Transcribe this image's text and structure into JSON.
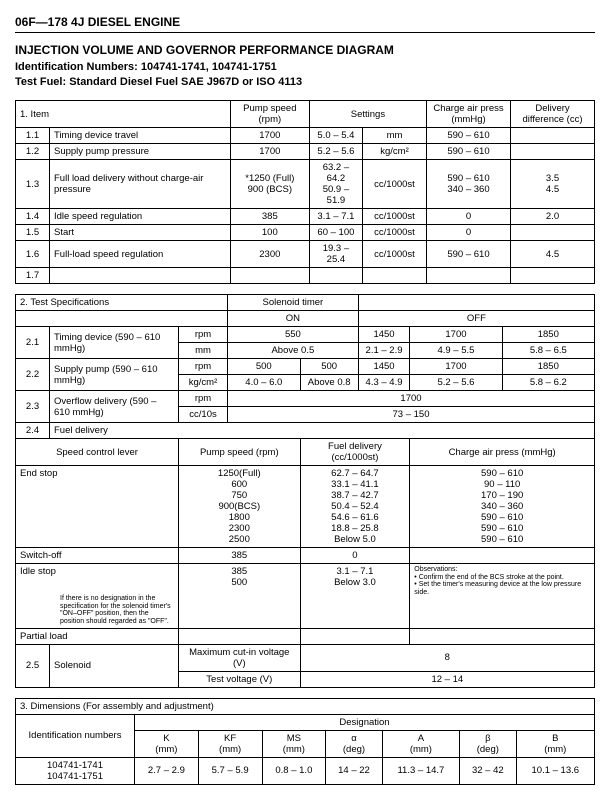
{
  "header": "06F—178  4J DIESEL ENGINE",
  "title": "INJECTION VOLUME AND GOVERNOR PERFORMANCE DIAGRAM",
  "id_line": "Identification Numbers: 104741-1741, 104741-1751",
  "fuel_line": "Test Fuel: Standard Diesel Fuel SAE J967D or ISO 4113",
  "t1": {
    "h1": "1.     Item",
    "h2": "Pump speed (rpm)",
    "h3": "Settings",
    "h4": "Charge air press (mmHg)",
    "h5": "Delivery difference (cc)",
    "rows": [
      [
        "1.1",
        "Timing device travel",
        "1700",
        "5.0 – 5.4",
        "mm",
        "590 – 610",
        ""
      ],
      [
        "1.2",
        "Supply pump pressure",
        "1700",
        "5.2 – 5.6",
        "kg/cm²",
        "590 – 610",
        ""
      ],
      [
        "1.3",
        "Full load delivery without charge-air pressure",
        "*1250 (Full)\n900 (BCS)",
        "63.2 – 64.2\n50.9 – 51.9",
        "cc/1000st",
        "590 – 610\n340 – 360",
        "3.5\n4.5"
      ],
      [
        "1.4",
        "Idle speed regulation",
        "385",
        "3.1 – 7.1",
        "cc/1000st",
        "0",
        "2.0"
      ],
      [
        "1.5",
        "Start",
        "100",
        "60 – 100",
        "cc/1000st",
        "0",
        ""
      ],
      [
        "1.6",
        "Full-load speed regulation",
        "2300",
        "19.3 – 25.4",
        "cc/1000st",
        "590 – 610",
        "4.5"
      ],
      [
        "1.7",
        "",
        "",
        "",
        "",
        "",
        ""
      ]
    ]
  },
  "t2": {
    "h1": "2.     Test Specifications",
    "h2": "Solenoid timer",
    "on": "ON",
    "off": "OFF",
    "r21": {
      "n": "2.1",
      "name": "Timing device (590 – 610 mmHg)",
      "u1": "rpm",
      "u2": "mm",
      "on1": "550",
      "on2": "Above 0.5",
      "off_a1": "1450",
      "off_a2": "2.1 – 2.9",
      "off_b1": "1700",
      "off_b2": "4.9 – 5.5",
      "off_c1": "1850",
      "off_c2": "5.8 – 6.5"
    },
    "r22": {
      "n": "2.2",
      "name": "Supply pump (590 – 610 mmHg)",
      "u1": "rpm",
      "u2": "kg/cm²",
      "on1": "500",
      "on2": "4.0 – 6.0",
      "mid1": "500",
      "mid2": "Above 0.8",
      "off_a1": "1450",
      "off_a2": "4.3 – 4.9",
      "off_b1": "1700",
      "off_b2": "5.2 – 5.6",
      "off_c1": "1850",
      "off_c2": "5.8 – 6.2"
    },
    "r23": {
      "n": "2.3",
      "name": "Overflow delivery (590 – 610 mmHg)",
      "u1": "rpm",
      "u2": "cc/10s",
      "v1": "1700",
      "v2": "73 – 150"
    },
    "r24": {
      "n": "2.4",
      "name": "Fuel delivery"
    },
    "scl": "Speed control lever",
    "ps": "Pump speed (rpm)",
    "fd": "Fuel delivery (cc/1000st)",
    "cap": "Charge air press (mmHg)",
    "end": "End stop",
    "end_ps": "1250(Full)\n600\n750\n900(BCS)\n1800\n2300\n2500",
    "end_fd": "62.7 – 64.7\n33.1 – 41.1\n38.7 – 42.7\n50.4 – 52.4\n54.6 – 61.6\n18.8 – 25.8\nBelow 5.0",
    "end_cap": "590 – 610\n90 – 110\n170 – 190\n340 – 360\n590 – 610\n590 – 610\n590 – 610",
    "sw": "Switch-off",
    "sw_ps": "385",
    "sw_fd": "0",
    "sw_cap": "",
    "idle": "Idle stop",
    "idle_ps": "385\n500",
    "idle_fd": "3.1 – 7.1\nBelow 3.0",
    "idle_note": "If there is no designation in the specification for the solenoid timer's \"ON–OFF\" position, then the position should regarded as \"OFF\".",
    "obs": "Observations:\n• Confirm the end of the BCS stroke at the point.\n• Set the timer's measuring device at the low pressure side.",
    "part": "Partial load",
    "r25": {
      "n": "2.5",
      "name": "Solenoid",
      "l1": "Maximum cut-in voltage (V)",
      "l2": "Test voltage (V)",
      "v1": "8",
      "v2": "12 – 14"
    }
  },
  "t3": {
    "h": "3.     Dimensions (For assembly and adjustment)",
    "des": "Designation",
    "idn": "Identification numbers",
    "cols": [
      "K\n(mm)",
      "KF\n(mm)",
      "MS\n(mm)",
      "α\n(deg)",
      "A\n(mm)",
      "β\n(deg)",
      "B\n(mm)"
    ],
    "ids": "104741-1741\n104741-1751",
    "vals": [
      "2.7 – 2.9",
      "5.7 – 5.9",
      "0.8 – 1.0",
      "14 – 22",
      "11.3 – 14.7",
      "32 – 42",
      "10.1 – 13.6"
    ]
  }
}
